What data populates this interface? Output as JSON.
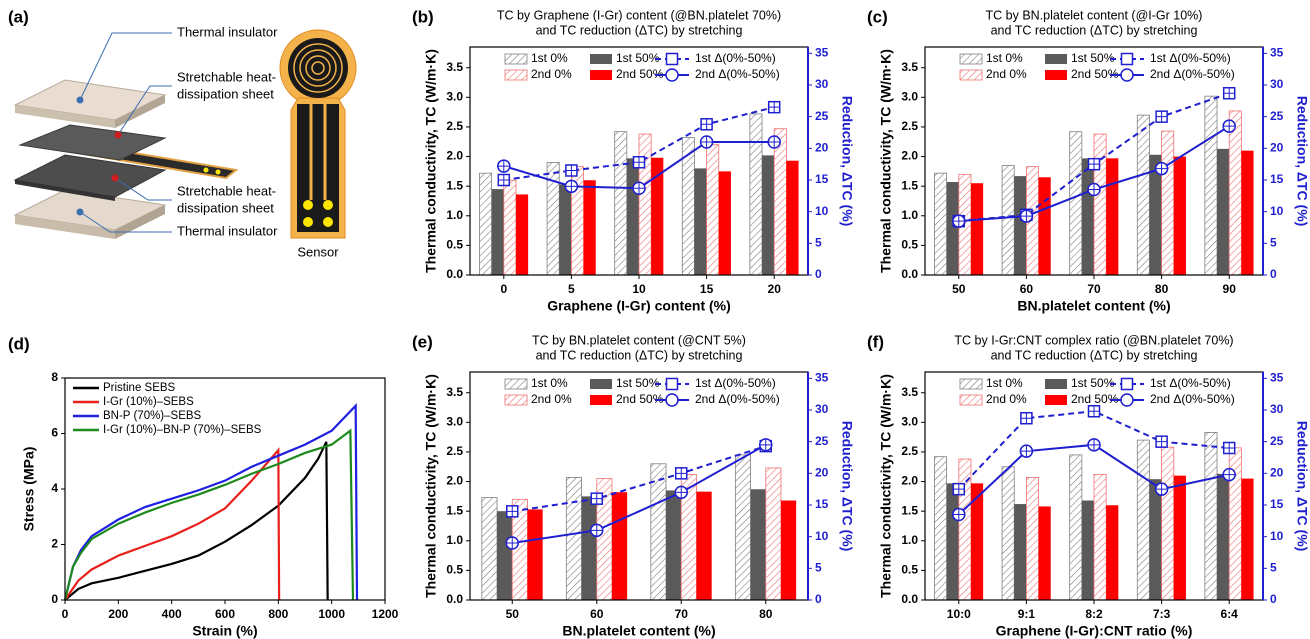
{
  "panel_a": {
    "label": "(a)",
    "callouts": [
      [
        "Thermal insulator"
      ],
      [
        "Stretchable heat-",
        "dissipation sheet"
      ],
      [
        "Stretchable heat-",
        "dissipation sheet"
      ],
      [
        "Thermal insulator"
      ]
    ],
    "sensor": "Sensor"
  },
  "chart_data": [
    {
      "type": "bar",
      "panel": "(b)",
      "title": "TC by Graphene (I-Gr) content (@BN.platelet 70%)",
      "subtitle": "and TC reduction (ΔTC) by stretching",
      "x_label": "Graphene (I-Gr) content (%)",
      "y_label": "Thermal conductivity, TC (W/m·K)",
      "y2_label": "Reduction, ΔTC (%)",
      "categories": [
        "0",
        "5",
        "10",
        "15",
        "20"
      ],
      "ylim": [
        0,
        3.85
      ],
      "yticks": [
        {
          "value": 0,
          "label": "0.0"
        },
        0.5,
        {
          "value": 1,
          "label": "1.0"
        },
        1.5,
        {
          "value": 2,
          "label": "2.0"
        },
        2.5,
        {
          "value": 3,
          "label": "3.0"
        },
        3.5
      ],
      "y2lim": [
        0,
        36
      ],
      "y2ticks": [
        0,
        5,
        10,
        15,
        20,
        25,
        30,
        35
      ],
      "series": [
        {
          "name": "1st 0%",
          "color": "#7f7f7f",
          "hatch": true,
          "values": [
            1.72,
            1.9,
            2.42,
            2.32,
            2.72
          ]
        },
        {
          "name": "1st 50%",
          "color": "#5a5a5a",
          "hatch": false,
          "values": [
            1.45,
            1.53,
            1.97,
            1.8,
            2.02
          ]
        },
        {
          "name": "2nd 0%",
          "color": "#f07070",
          "hatch": true,
          "values": [
            1.6,
            1.83,
            2.38,
            2.2,
            2.47
          ]
        },
        {
          "name": "2nd 50%",
          "color": "#ff0000",
          "hatch": false,
          "values": [
            1.36,
            1.6,
            1.98,
            1.75,
            1.93
          ]
        },
        {
          "name": "1st Δ(0%-50%)",
          "color": "#1f1fd0",
          "axis": "y2",
          "linestyle": "dashed",
          "marker": "square",
          "values": [
            15,
            16.5,
            17.8,
            23.8,
            26.5
          ]
        },
        {
          "name": "2nd Δ(0%-50%)",
          "color": "#1f1fd0",
          "axis": "y2",
          "linestyle": "solid",
          "marker": "circle",
          "values": [
            17.2,
            14,
            13.7,
            21,
            21
          ]
        }
      ]
    },
    {
      "type": "bar",
      "panel": "(c)",
      "title": "TC by BN.platelet content (@I-Gr 10%)",
      "subtitle": "and TC reduction (ΔTC) by stretching",
      "x_label": "BN.platelet content (%)",
      "y_label": "Thermal conductivity, TC (W/m·K)",
      "y2_label": "Reduction, ΔTC (%)",
      "categories": [
        "50",
        "60",
        "70",
        "80",
        "90"
      ],
      "ylim": [
        0,
        3.85
      ],
      "yticks": [
        {
          "value": 0,
          "label": "0.0"
        },
        0.5,
        {
          "value": 1,
          "label": "1.0"
        },
        1.5,
        {
          "value": 2,
          "label": "2.0"
        },
        2.5,
        {
          "value": 3,
          "label": "3.0"
        },
        3.5
      ],
      "y2lim": [
        0,
        36
      ],
      "y2ticks": [
        0,
        5,
        10,
        15,
        20,
        25,
        30,
        35
      ],
      "series": [
        {
          "name": "1st 0%",
          "color": "#7f7f7f",
          "hatch": true,
          "values": [
            1.72,
            1.85,
            2.42,
            2.7,
            3.02
          ]
        },
        {
          "name": "1st 50%",
          "color": "#5a5a5a",
          "hatch": false,
          "values": [
            1.57,
            1.67,
            1.97,
            2.03,
            2.13
          ]
        },
        {
          "name": "2nd 0%",
          "color": "#f07070",
          "hatch": true,
          "values": [
            1.7,
            1.83,
            2.38,
            2.43,
            2.77
          ]
        },
        {
          "name": "2nd 50%",
          "color": "#ff0000",
          "hatch": false,
          "values": [
            1.55,
            1.65,
            1.97,
            2.0,
            2.1
          ]
        },
        {
          "name": "1st Δ(0%-50%)",
          "color": "#1f1fd0",
          "axis": "y2",
          "linestyle": "dashed",
          "marker": "square",
          "values": [
            8.5,
            9.5,
            17.5,
            25,
            28.7
          ]
        },
        {
          "name": "2nd Δ(0%-50%)",
          "color": "#1f1fd0",
          "axis": "y2",
          "linestyle": "solid",
          "marker": "circle",
          "values": [
            8.5,
            9.3,
            13.5,
            16.8,
            23.5
          ]
        }
      ]
    },
    {
      "type": "line",
      "panel": "(d)",
      "x_label": "Strain (%)",
      "y_label": "Stress (MPa)",
      "xlim": [
        0,
        1200
      ],
      "xticks": [
        0,
        200,
        400,
        600,
        800,
        1000,
        1200
      ],
      "ylim": [
        0,
        8
      ],
      "yticks": [
        0,
        2,
        4,
        6,
        8
      ],
      "series": [
        {
          "name": "Pristine SEBS",
          "color": "#000000",
          "x": [
            0,
            50,
            100,
            200,
            300,
            400,
            500,
            600,
            700,
            800,
            900,
            950,
            980,
            985
          ],
          "values": [
            0,
            0.4,
            0.6,
            0.8,
            1.05,
            1.3,
            1.6,
            2.1,
            2.7,
            3.4,
            4.4,
            5.1,
            5.7,
            0
          ]
        },
        {
          "name": "I-Gr (10%)–SEBS",
          "color": "#e8201c",
          "x": [
            0,
            50,
            100,
            200,
            300,
            400,
            500,
            600,
            700,
            800,
            803
          ],
          "values": [
            0,
            0.7,
            1.1,
            1.6,
            1.95,
            2.3,
            2.75,
            3.3,
            4.3,
            5.4,
            0
          ]
        },
        {
          "name": "BN-P (70%)–SEBS",
          "color": "#1f1fe0",
          "x": [
            0,
            30,
            60,
            100,
            200,
            300,
            400,
            500,
            600,
            700,
            800,
            900,
            1000,
            1090,
            1095
          ],
          "values": [
            0,
            1.2,
            1.8,
            2.3,
            2.9,
            3.35,
            3.65,
            3.95,
            4.3,
            4.8,
            5.2,
            5.6,
            6.1,
            7.0,
            0
          ]
        },
        {
          "name": "I-Gr (10%)–BN-P (70%)–SEBS",
          "color": "#1e8a1e",
          "x": [
            0,
            30,
            60,
            100,
            200,
            300,
            400,
            500,
            600,
            700,
            800,
            900,
            1000,
            1070,
            1080
          ],
          "values": [
            0,
            1.2,
            1.7,
            2.2,
            2.75,
            3.15,
            3.5,
            3.8,
            4.15,
            4.55,
            4.9,
            5.3,
            5.6,
            6.1,
            0
          ]
        }
      ]
    },
    {
      "type": "bar",
      "panel": "(e)",
      "title": "TC by BN.platelet content (@CNT 5%)",
      "subtitle": "and TC reduction (ΔTC) by stretching",
      "x_label": "BN.platelet content (%)",
      "y_label": "Thermal conductivity, TC (W/m·K)",
      "y2_label": "Reduction, ΔTC (%)",
      "categories": [
        "50",
        "60",
        "70",
        "80"
      ],
      "ylim": [
        0,
        3.85
      ],
      "yticks": [
        {
          "value": 0,
          "label": "0.0"
        },
        0.5,
        {
          "value": 1,
          "label": "1.0"
        },
        1.5,
        {
          "value": 2,
          "label": "2.0"
        },
        2.5,
        {
          "value": 3,
          "label": "3.0"
        },
        3.5
      ],
      "y2lim": [
        0,
        36
      ],
      "y2ticks": [
        0,
        5,
        10,
        15,
        20,
        25,
        30,
        35
      ],
      "series": [
        {
          "name": "1st 0%",
          "color": "#7f7f7f",
          "hatch": true,
          "values": [
            1.73,
            2.07,
            2.3,
            2.45
          ]
        },
        {
          "name": "1st 50%",
          "color": "#5a5a5a",
          "hatch": false,
          "values": [
            1.5,
            1.75,
            1.85,
            1.87
          ]
        },
        {
          "name": "2nd 0%",
          "color": "#f07070",
          "hatch": true,
          "values": [
            1.7,
            2.05,
            2.12,
            2.23
          ]
        },
        {
          "name": "2nd 50%",
          "color": "#ff0000",
          "hatch": false,
          "values": [
            1.53,
            1.82,
            1.83,
            1.68
          ]
        },
        {
          "name": "1st Δ(0%-50%)",
          "color": "#1f1fd0",
          "axis": "y2",
          "linestyle": "dashed",
          "marker": "square",
          "values": [
            14,
            16,
            20,
            24.3
          ]
        },
        {
          "name": "2nd Δ(0%-50%)",
          "color": "#1f1fd0",
          "axis": "y2",
          "linestyle": "solid",
          "marker": "circle",
          "values": [
            9,
            11,
            17,
            24.5
          ]
        }
      ]
    },
    {
      "type": "bar",
      "panel": "(f)",
      "title": "TC by I-Gr:CNT complex ratio (@BN.platelet 70%)",
      "subtitle": "and TC reduction (ΔTC) by stretching",
      "x_label": "Graphene (I-Gr):CNT ratio (%)",
      "y_label": "Thermal conductivity, TC (W/m·K)",
      "y2_label": "Reduction, ΔTC (%)",
      "categories": [
        "10:0",
        "9:1",
        "8:2",
        "7:3",
        "6:4"
      ],
      "ylim": [
        0,
        3.85
      ],
      "yticks": [
        {
          "value": 0,
          "label": "0.0"
        },
        0.5,
        {
          "value": 1,
          "label": "1.0"
        },
        1.5,
        {
          "value": 2,
          "label": "2.0"
        },
        2.5,
        {
          "value": 3,
          "label": "3.0"
        },
        3.5
      ],
      "y2lim": [
        0,
        36
      ],
      "y2ticks": [
        0,
        5,
        10,
        15,
        20,
        25,
        30,
        35
      ],
      "series": [
        {
          "name": "1st 0%",
          "color": "#7f7f7f",
          "hatch": true,
          "values": [
            2.42,
            2.25,
            2.45,
            2.7,
            2.83
          ]
        },
        {
          "name": "1st 50%",
          "color": "#5a5a5a",
          "hatch": false,
          "values": [
            1.97,
            1.62,
            1.68,
            2.04,
            2.13
          ]
        },
        {
          "name": "2nd 0%",
          "color": "#f07070",
          "hatch": true,
          "values": [
            2.38,
            2.07,
            2.12,
            2.58,
            2.57
          ]
        },
        {
          "name": "2nd 50%",
          "color": "#ff0000",
          "hatch": false,
          "values": [
            1.97,
            1.58,
            1.6,
            2.1,
            2.05
          ]
        },
        {
          "name": "1st Δ(0%-50%)",
          "color": "#1f1fd0",
          "axis": "y2",
          "linestyle": "dashed",
          "marker": "square",
          "values": [
            17.5,
            28.7,
            29.8,
            25,
            24
          ]
        },
        {
          "name": "2nd Δ(0%-50%)",
          "color": "#1f1fd0",
          "axis": "y2",
          "linestyle": "solid",
          "marker": "circle",
          "values": [
            13.5,
            23.5,
            24.5,
            17.5,
            19.8
          ]
        }
      ]
    }
  ]
}
